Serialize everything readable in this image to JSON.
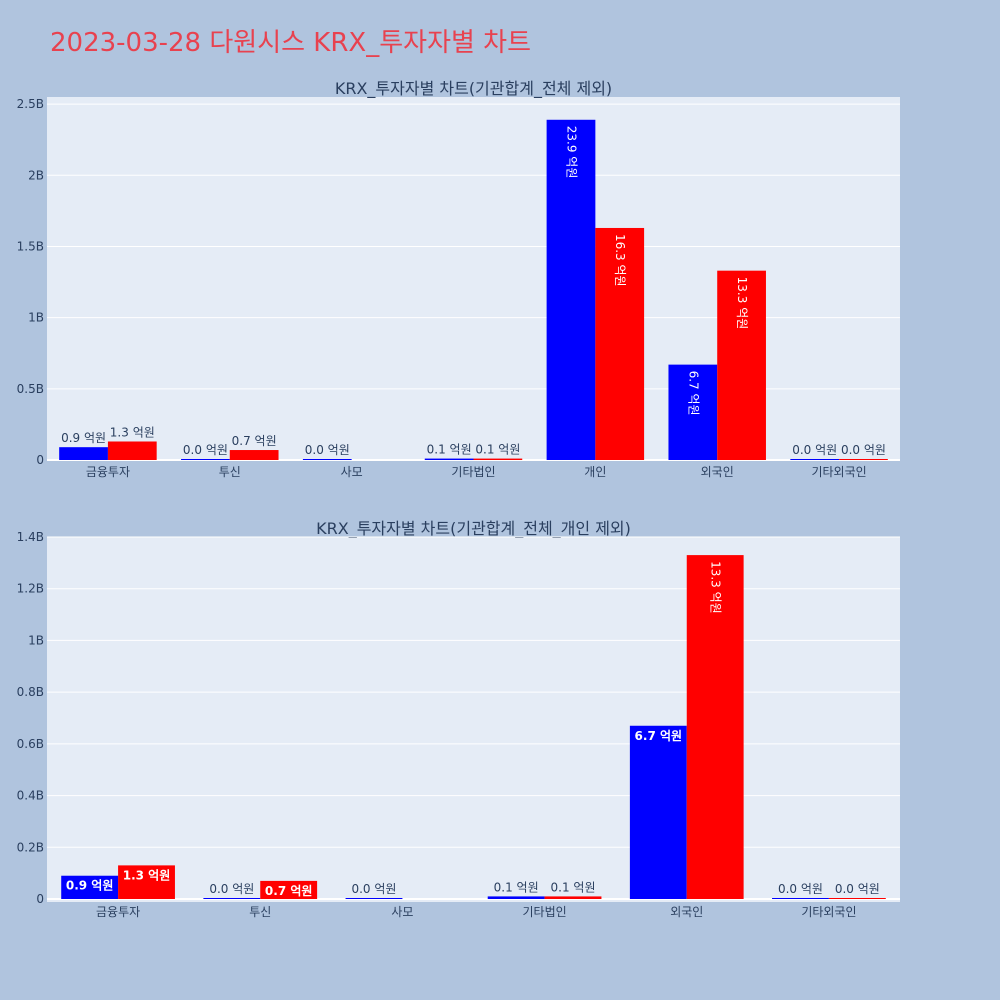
{
  "page": {
    "title": "2023-03-28 다원시스 KRX_투자자별 차트"
  },
  "chart_data": [
    {
      "type": "bar",
      "title": "KRX_투자자별 차트(기관합계_전체 제외)",
      "categories": [
        "금융투자",
        "투신",
        "사모",
        "기타법인",
        "개인",
        "외국인",
        "기타외국인"
      ],
      "series": [
        {
          "color": "#0000ff",
          "values": [
            90000000,
            1000000,
            1000000,
            10000000,
            2390000000,
            670000000,
            1000000
          ],
          "labels": [
            "0.9 억원",
            "0.0 억원",
            "0.0 억원",
            "0.1 억원",
            "23.9 억원",
            "6.7 억원",
            "0.0 억원"
          ]
        },
        {
          "color": "#ff0000",
          "values": [
            130000000,
            70000000,
            null,
            10000000,
            1630000000,
            1330000000,
            1000000
          ],
          "labels": [
            "1.3 억원",
            "0.7 억원",
            "",
            "0.1 억원",
            "16.3 억원",
            "13.3 억원",
            "0.0 억원"
          ]
        }
      ],
      "ylim": [
        0,
        2550000000
      ],
      "yticks": [
        0,
        500000000,
        1000000000,
        1500000000,
        2000000000,
        2500000000
      ],
      "ytick_labels": [
        "0",
        "0.5B",
        "1B",
        "1.5B",
        "2B",
        "2.5B"
      ],
      "grid": true,
      "legend": "none"
    },
    {
      "type": "bar",
      "title": "KRX_투자자별 차트(기관합계_전체_개인 제외)",
      "categories": [
        "금융투자",
        "투신",
        "사모",
        "기타법인",
        "외국인",
        "기타외국인"
      ],
      "series": [
        {
          "color": "#0000ff",
          "values": [
            90000000,
            1000000,
            1000000,
            10000000,
            670000000,
            1000000
          ],
          "labels": [
            "0.9 억원",
            "0.0 억원",
            "0.0 억원",
            "0.1 억원",
            "6.7 억원",
            "0.0 억원"
          ]
        },
        {
          "color": "#ff0000",
          "values": [
            130000000,
            70000000,
            null,
            10000000,
            1330000000,
            1000000
          ],
          "labels": [
            "1.3 억원",
            "0.7 억원",
            "",
            "0.1 억원",
            "13.3 억원",
            "0.0 억원"
          ]
        }
      ],
      "ylim": [
        0,
        1400000000
      ],
      "yticks": [
        0,
        200000000,
        400000000,
        600000000,
        800000000,
        1000000000,
        1200000000,
        1400000000
      ],
      "ytick_labels": [
        "0",
        "0.2B",
        "0.4B",
        "0.6B",
        "0.8B",
        "1B",
        "1.2B",
        "1.4B"
      ],
      "grid": true,
      "legend": "none"
    }
  ]
}
